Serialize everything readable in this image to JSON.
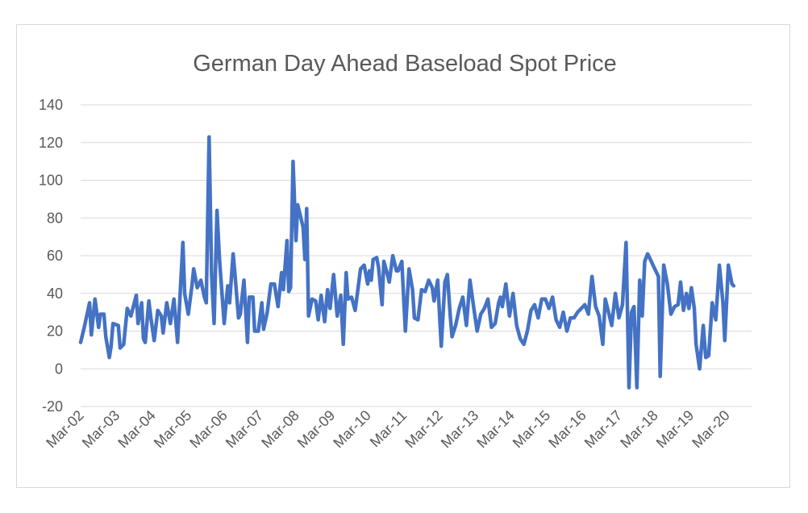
{
  "chart_data": {
    "type": "line",
    "title": "German Day Ahead Baseload Spot Price",
    "xlabel": "",
    "ylabel": "",
    "ylim": [
      -20,
      140
    ],
    "yticks": [
      -20,
      0,
      20,
      40,
      60,
      80,
      100,
      120,
      140
    ],
    "x_tick_labels": [
      "Mar-02",
      "Mar-03",
      "Mar-04",
      "Mar-05",
      "Mar-06",
      "Mar-07",
      "Mar-08",
      "Mar-09",
      "Mar-10",
      "Mar-11",
      "Mar-12",
      "Mar-13",
      "Mar-14",
      "Mar-15",
      "Mar-16",
      "Mar-17",
      "Mar-18",
      "Mar-19",
      "Mar-20"
    ],
    "grid": "horizontal",
    "legend": "none",
    "series_color": "#4472c4",
    "series": [
      {
        "values": [
          [
            0.0,
            14
          ],
          [
            0.1,
            22
          ],
          [
            0.25,
            35
          ],
          [
            0.3,
            18
          ],
          [
            0.4,
            37
          ],
          [
            0.5,
            22
          ],
          [
            0.55,
            29
          ],
          [
            0.65,
            29
          ],
          [
            0.7,
            17
          ],
          [
            0.8,
            6
          ],
          [
            0.85,
            12
          ],
          [
            0.9,
            24
          ],
          [
            1.05,
            23
          ],
          [
            1.1,
            11
          ],
          [
            1.2,
            13
          ],
          [
            1.3,
            32
          ],
          [
            1.4,
            28
          ],
          [
            1.55,
            39
          ],
          [
            1.6,
            24
          ],
          [
            1.7,
            35
          ],
          [
            1.75,
            16
          ],
          [
            1.8,
            14
          ],
          [
            1.9,
            36
          ],
          [
            1.95,
            28
          ],
          [
            2.05,
            15
          ],
          [
            2.15,
            31
          ],
          [
            2.25,
            28
          ],
          [
            2.3,
            19
          ],
          [
            2.4,
            35
          ],
          [
            2.5,
            24
          ],
          [
            2.6,
            37
          ],
          [
            2.7,
            14
          ],
          [
            2.85,
            67
          ],
          [
            2.9,
            40
          ],
          [
            3.0,
            29
          ],
          [
            3.1,
            44
          ],
          [
            3.15,
            53
          ],
          [
            3.25,
            43
          ],
          [
            3.35,
            47
          ],
          [
            3.45,
            38
          ],
          [
            3.5,
            35
          ],
          [
            3.58,
            123
          ],
          [
            3.65,
            50
          ],
          [
            3.72,
            24
          ],
          [
            3.8,
            84
          ],
          [
            3.87,
            58
          ],
          [
            3.95,
            37
          ],
          [
            4.0,
            24
          ],
          [
            4.1,
            44
          ],
          [
            4.15,
            35
          ],
          [
            4.25,
            61
          ],
          [
            4.3,
            50
          ],
          [
            4.4,
            27
          ],
          [
            4.45,
            29
          ],
          [
            4.55,
            47
          ],
          [
            4.65,
            14
          ],
          [
            4.7,
            38
          ],
          [
            4.8,
            38
          ],
          [
            4.85,
            20
          ],
          [
            4.95,
            20
          ],
          [
            5.05,
            35
          ],
          [
            5.1,
            21
          ],
          [
            5.2,
            30
          ],
          [
            5.3,
            45
          ],
          [
            5.4,
            45
          ],
          [
            5.5,
            33
          ],
          [
            5.6,
            51
          ],
          [
            5.65,
            42
          ],
          [
            5.75,
            68
          ],
          [
            5.8,
            41
          ],
          [
            5.85,
            43
          ],
          [
            5.92,
            110
          ],
          [
            6.0,
            68
          ],
          [
            6.05,
            87
          ],
          [
            6.1,
            83
          ],
          [
            6.2,
            75
          ],
          [
            6.25,
            58
          ],
          [
            6.3,
            85
          ],
          [
            6.35,
            28
          ],
          [
            6.45,
            37
          ],
          [
            6.55,
            36
          ],
          [
            6.62,
            26
          ],
          [
            6.7,
            39
          ],
          [
            6.8,
            25
          ],
          [
            6.88,
            42
          ],
          [
            6.95,
            32
          ],
          [
            7.05,
            50
          ],
          [
            7.15,
            28
          ],
          [
            7.25,
            39
          ],
          [
            7.32,
            13
          ],
          [
            7.4,
            51
          ],
          [
            7.45,
            37
          ],
          [
            7.55,
            38
          ],
          [
            7.65,
            31
          ],
          [
            7.72,
            41
          ],
          [
            7.8,
            53
          ],
          [
            7.9,
            55
          ],
          [
            8.0,
            45
          ],
          [
            8.05,
            52
          ],
          [
            8.1,
            47
          ],
          [
            8.15,
            58
          ],
          [
            8.25,
            59
          ],
          [
            8.3,
            54
          ],
          [
            8.4,
            34
          ],
          [
            8.45,
            57
          ],
          [
            8.55,
            50
          ],
          [
            8.6,
            46
          ],
          [
            8.7,
            60
          ],
          [
            8.8,
            52
          ],
          [
            8.85,
            52
          ],
          [
            8.95,
            57
          ],
          [
            9.05,
            20
          ],
          [
            9.15,
            53
          ],
          [
            9.25,
            42
          ],
          [
            9.3,
            27
          ],
          [
            9.4,
            26
          ],
          [
            9.5,
            42
          ],
          [
            9.6,
            41
          ],
          [
            9.7,
            47
          ],
          [
            9.8,
            43
          ],
          [
            9.85,
            36
          ],
          [
            9.95,
            47
          ],
          [
            10.05,
            12
          ],
          [
            10.15,
            46
          ],
          [
            10.22,
            50
          ],
          [
            10.3,
            28
          ],
          [
            10.35,
            17
          ],
          [
            10.45,
            23
          ],
          [
            10.55,
            32
          ],
          [
            10.65,
            38
          ],
          [
            10.75,
            23
          ],
          [
            10.85,
            47
          ],
          [
            10.95,
            33
          ],
          [
            11.05,
            20
          ],
          [
            11.15,
            29
          ],
          [
            11.25,
            32
          ],
          [
            11.35,
            37
          ],
          [
            11.45,
            22
          ],
          [
            11.55,
            24
          ],
          [
            11.65,
            35
          ],
          [
            11.7,
            38
          ],
          [
            11.75,
            33
          ],
          [
            11.85,
            45
          ],
          [
            11.95,
            28
          ],
          [
            12.05,
            40
          ],
          [
            12.15,
            23
          ],
          [
            12.25,
            16
          ],
          [
            12.35,
            13
          ],
          [
            12.45,
            20
          ],
          [
            12.55,
            31
          ],
          [
            12.65,
            34
          ],
          [
            12.75,
            27
          ],
          [
            12.85,
            37
          ],
          [
            12.95,
            37
          ],
          [
            13.05,
            32
          ],
          [
            13.15,
            38
          ],
          [
            13.25,
            26
          ],
          [
            13.35,
            22
          ],
          [
            13.45,
            30
          ],
          [
            13.55,
            20
          ],
          [
            13.65,
            27
          ],
          [
            13.75,
            27
          ],
          [
            13.85,
            30
          ],
          [
            13.95,
            32
          ],
          [
            14.05,
            34
          ],
          [
            14.15,
            29
          ],
          [
            14.25,
            49
          ],
          [
            14.35,
            33
          ],
          [
            14.45,
            28
          ],
          [
            14.55,
            13
          ],
          [
            14.62,
            37
          ],
          [
            14.7,
            31
          ],
          [
            14.8,
            23
          ],
          [
            14.9,
            40
          ],
          [
            15.0,
            27
          ],
          [
            15.1,
            34
          ],
          [
            15.2,
            67
          ],
          [
            15.28,
            -10
          ],
          [
            15.35,
            30
          ],
          [
            15.42,
            33
          ],
          [
            15.5,
            -10
          ],
          [
            15.58,
            47
          ],
          [
            15.65,
            28
          ],
          [
            15.72,
            57
          ],
          [
            15.8,
            61
          ],
          [
            15.9,
            57
          ],
          [
            16.0,
            53
          ],
          [
            16.1,
            49
          ],
          [
            16.15,
            -4
          ],
          [
            16.25,
            55
          ],
          [
            16.35,
            45
          ],
          [
            16.45,
            29
          ],
          [
            16.55,
            33
          ],
          [
            16.65,
            34
          ],
          [
            16.72,
            46
          ],
          [
            16.8,
            31
          ],
          [
            16.88,
            40
          ],
          [
            16.95,
            32
          ],
          [
            17.02,
            43
          ],
          [
            17.1,
            32
          ],
          [
            17.15,
            13
          ],
          [
            17.25,
            0
          ],
          [
            17.35,
            23
          ],
          [
            17.42,
            6
          ],
          [
            17.5,
            7
          ],
          [
            17.6,
            35
          ],
          [
            17.7,
            26
          ],
          [
            17.8,
            55
          ],
          [
            17.9,
            35
          ],
          [
            17.95,
            15
          ],
          [
            18.05,
            55
          ],
          [
            18.15,
            45
          ],
          [
            18.2,
            44
          ]
        ]
      }
    ]
  }
}
